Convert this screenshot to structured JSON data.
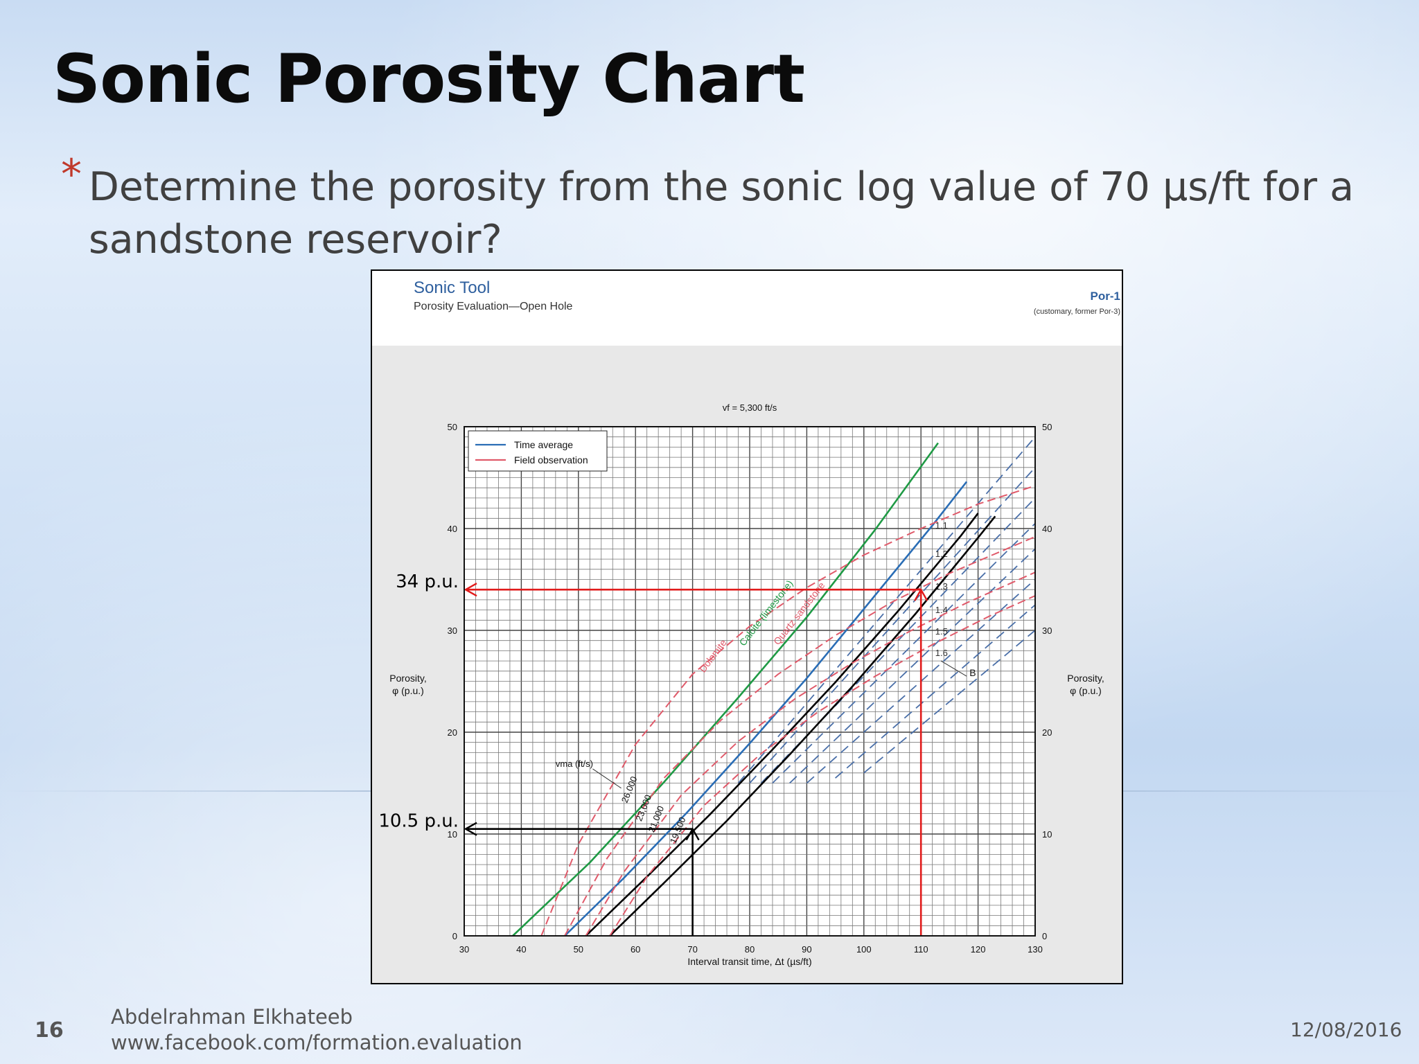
{
  "slide": {
    "title": "Sonic Porosity Chart",
    "bullet_marker": "*",
    "bullet_text": "Determine the porosity from the sonic log value of 70 µs/ft for a sandstone reservoir?",
    "slide_number": "16",
    "author": "Abdelrahman Elkhateeb",
    "url": "www.facebook.com/formation.evaluation",
    "date": "12/08/2016"
  },
  "colors": {
    "time_average": "#2a6db5",
    "field_observation": "#e05a6a",
    "calcite": "#1f9a45",
    "sandstone": "#000000",
    "bcp": "#4a6fa8",
    "annotation_red": "#e11b1b",
    "annotation_black": "#000000",
    "header_blue": "#2e5f9e"
  },
  "chart_data": {
    "type": "line",
    "header": {
      "title": "Sonic Tool",
      "subtitle": "Porosity Evaluation—Open Hole",
      "code": "Por-1",
      "code_note": "(customary, former Por-3)"
    },
    "top_label": "vf = 5,300 ft/s",
    "xlabel": "Interval transit time, Δt (µs/ft)",
    "ylabel_left": [
      "Porosity,",
      "φ (p.u.)"
    ],
    "ylabel_right": [
      "Porosity,",
      "φ (p.u.)"
    ],
    "xlim": [
      30,
      130
    ],
    "ylim": [
      0,
      50
    ],
    "xticks": [
      30,
      40,
      50,
      60,
      70,
      80,
      90,
      100,
      110,
      120,
      130
    ],
    "yticks": [
      0,
      10,
      20,
      30,
      40,
      50
    ],
    "grid": true,
    "legend": {
      "placement": "top-left",
      "entries": [
        {
          "label": "Time average",
          "style": "blue"
        },
        {
          "label": "Field observation",
          "style": "red"
        }
      ]
    },
    "series": [
      {
        "name": "Time average",
        "kind": "time-average",
        "color": "blue",
        "lines": [
          {
            "x": [
              38.5,
              52.0,
              65.0,
              78.0,
              90.0,
              102.0,
              113.0
            ],
            "y": [
              0,
              7.2,
              15.1,
              23.4,
              31.3,
              39.9,
              48.4
            ]
          },
          {
            "x": [
              47.6,
              58.0,
              69.0,
              80.0,
              90.0,
              100.0,
              112.0,
              118.0
            ],
            "y": [
              0,
              5.7,
              12.1,
              18.9,
              25.3,
              32.1,
              40.3,
              44.6
            ]
          },
          {
            "x": [
              51.3,
              62.0,
              73.0,
              84.0,
              95.0,
              106.0,
              117.0,
              120.0
            ],
            "y": [
              0,
              5.8,
              11.9,
              18.3,
              24.9,
              31.9,
              39.3,
              41.5
            ]
          },
          {
            "x": [
              55.5,
              65.0,
              76.0,
              87.0,
              98.0,
              109.0,
              120.0,
              123.0
            ],
            "y": [
              0,
              5.2,
              11.3,
              17.8,
              24.5,
              31.6,
              39.1,
              41.2
            ]
          }
        ]
      },
      {
        "name": "Field observation",
        "kind": "field-observation",
        "color": "red",
        "lines": [
          {
            "x": [
              43.5,
              50.0,
              60.0,
              70.0,
              80.0,
              90.0,
              100.0,
              110.0,
              120.0,
              130.0
            ],
            "y": [
              0,
              9.0,
              18.8,
              25.7,
              30.4,
              34.2,
              37.4,
              40.0,
              42.4,
              44.2
            ]
          },
          {
            "x": [
              47.6,
              55.0,
              65.0,
              75.0,
              85.0,
              95.0,
              105.0,
              115.0,
              125.0,
              130.0
            ],
            "y": [
              0,
              7.6,
              15.5,
              21.2,
              25.7,
              29.5,
              32.8,
              35.6,
              38.0,
              39.2
            ]
          },
          {
            "x": [
              51.3,
              58.0,
              68.0,
              78.0,
              88.0,
              98.0,
              108.0,
              118.0,
              128.0,
              130.0
            ],
            "y": [
              0,
              6.3,
              13.8,
              19.1,
              23.3,
              26.8,
              29.9,
              32.7,
              35.2,
              35.7
            ]
          },
          {
            "x": [
              55.5,
              62.0,
              72.0,
              82.0,
              92.0,
              102.0,
              112.0,
              122.0,
              130.0
            ],
            "y": [
              0,
              5.8,
              12.8,
              17.9,
              22.0,
              25.5,
              28.6,
              31.4,
              33.4
            ]
          }
        ]
      }
    ],
    "bcp_lines": {
      "labels": [
        "1.1",
        "1.2",
        "1.3",
        "1.4",
        "1.5",
        "1.6"
      ],
      "symbol": "Bcp",
      "lines": [
        {
          "x": [
            78.0,
            130.0
          ],
          "y": [
            15.0,
            49.0
          ]
        },
        {
          "x": [
            80.0,
            130.0
          ],
          "y": [
            15.0,
            46.0
          ]
        },
        {
          "x": [
            82.0,
            130.0
          ],
          "y": [
            15.0,
            43.0
          ]
        },
        {
          "x": [
            84.0,
            130.0
          ],
          "y": [
            15.0,
            40.5
          ]
        },
        {
          "x": [
            87.0,
            130.0
          ],
          "y": [
            15.0,
            38.0
          ]
        },
        {
          "x": [
            90.0,
            130.0
          ],
          "y": [
            15.0,
            35.0
          ]
        },
        {
          "x": [
            95.0,
            130.0
          ],
          "y": [
            15.5,
            32.5
          ]
        },
        {
          "x": [
            100.0,
            130.0
          ],
          "y": [
            16.0,
            30.0
          ]
        }
      ]
    },
    "curve_labels": [
      "Dolomite",
      "Calcite (limestone)",
      "Quartz sandstone"
    ],
    "matrix_velocity_label": "vma (ft/s)",
    "matrix_velocities": [
      "26,000",
      "23,000",
      "21,000",
      "19,500"
    ],
    "annotations": [
      {
        "label": "34 p.u.",
        "x": 110,
        "y": 34,
        "color": "red"
      },
      {
        "label": "10.5 p.u.",
        "x": 70,
        "y": 10.5,
        "color": "black"
      }
    ]
  }
}
